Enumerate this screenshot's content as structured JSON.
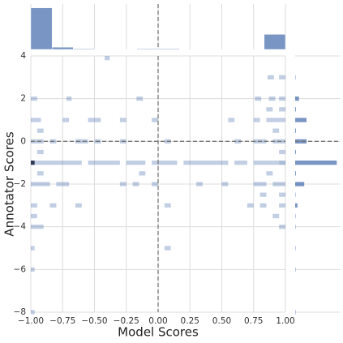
{
  "chart_data": {
    "type": "hist2d",
    "x_label": "Model Scores",
    "y_label": "Annotator Scores",
    "xlim": [
      -1,
      1
    ],
    "ylim": [
      -8,
      4
    ],
    "xticks": [
      {
        "value": -1,
        "label": "−1.00"
      },
      {
        "value": -0.75,
        "label": "−0.75"
      },
      {
        "value": -0.5,
        "label": "−0.50"
      },
      {
        "value": -0.25,
        "label": "−0.25"
      },
      {
        "value": 0,
        "label": "0.00"
      },
      {
        "value": 0.25,
        "label": "0.25"
      },
      {
        "value": 0.5,
        "label": "0.50"
      },
      {
        "value": 0.75,
        "label": "0.75"
      },
      {
        "value": 1,
        "label": "1.00"
      }
    ],
    "yticks": [
      {
        "value": -8,
        "label": "−8"
      },
      {
        "value": -6,
        "label": "−6"
      },
      {
        "value": -4,
        "label": "−4"
      },
      {
        "value": -2,
        "label": "−2"
      },
      0,
      2,
      4
    ],
    "grid": true,
    "color": "#4c72b0",
    "reference_x": 0,
    "reference_y": 0,
    "cell_height": 0.2,
    "cells": [
      [
        -0.42,
        -0.38,
        3.9,
        1
      ],
      [
        0.86,
        0.91,
        3,
        1
      ],
      [
        0.95,
        1,
        3,
        1
      ],
      [
        -1,
        -0.95,
        2,
        1
      ],
      [
        -0.72,
        -0.68,
        2,
        1
      ],
      [
        -0.17,
        -0.12,
        2,
        1
      ],
      [
        0.76,
        0.81,
        2,
        1
      ],
      [
        0.87,
        0.92,
        2,
        1
      ],
      [
        0.95,
        1,
        2,
        1
      ],
      [
        0.85,
        0.9,
        1.5,
        1
      ],
      [
        0.95,
        1,
        1.5,
        1
      ],
      [
        -1,
        -0.92,
        1,
        1
      ],
      [
        -0.75,
        -0.7,
        1,
        1
      ],
      [
        -0.55,
        -0.45,
        1,
        1
      ],
      [
        -0.3,
        -0.25,
        1,
        1
      ],
      [
        -0.05,
        0,
        1,
        1
      ],
      [
        0.55,
        0.6,
        1,
        1
      ],
      [
        0.75,
        0.8,
        1,
        1
      ],
      [
        0.85,
        1,
        1,
        1
      ],
      [
        -0.95,
        -0.9,
        0.5,
        1
      ],
      [
        0.9,
        0.95,
        0.5,
        1
      ],
      [
        -1,
        -0.9,
        0,
        1
      ],
      [
        -0.85,
        -0.8,
        0,
        1
      ],
      [
        -0.65,
        -0.55,
        0,
        1
      ],
      [
        -0.5,
        -0.45,
        0,
        1
      ],
      [
        -0.3,
        -0.25,
        0,
        1
      ],
      [
        0.05,
        0.1,
        0,
        1
      ],
      [
        0.6,
        0.65,
        0,
        1
      ],
      [
        0.75,
        0.85,
        0,
        1
      ],
      [
        0.9,
        1,
        0,
        1
      ],
      [
        -0.95,
        -0.9,
        -0.5,
        1
      ],
      [
        0.95,
        1,
        -0.5,
        1
      ],
      [
        -1,
        -0.97,
        -1,
        6
      ],
      [
        -0.97,
        -0.6,
        -1,
        1
      ],
      [
        -0.55,
        -0.3,
        -1,
        1
      ],
      [
        -0.25,
        -0.1,
        -1,
        1
      ],
      [
        -0.05,
        0.15,
        -1,
        1
      ],
      [
        0.2,
        0.55,
        -1,
        1
      ],
      [
        0.6,
        0.7,
        -1,
        1
      ],
      [
        0.75,
        0.95,
        -1,
        1
      ],
      [
        0.95,
        1,
        -1,
        2
      ],
      [
        -0.95,
        -0.9,
        -1.5,
        1
      ],
      [
        -0.15,
        -0.1,
        -1.5,
        1
      ],
      [
        0.85,
        0.9,
        -1.5,
        1
      ],
      [
        -1,
        -0.85,
        -2,
        1
      ],
      [
        -0.8,
        -0.7,
        -2,
        1
      ],
      [
        -0.3,
        -0.25,
        -2,
        1
      ],
      [
        -0.2,
        -0.15,
        -2,
        1
      ],
      [
        -0.05,
        0,
        -2,
        1
      ],
      [
        0.3,
        0.35,
        -2,
        1
      ],
      [
        0.5,
        0.55,
        -2,
        1
      ],
      [
        0.75,
        0.85,
        -2,
        1
      ],
      [
        0.9,
        1,
        -2,
        1
      ],
      [
        0.8,
        0.85,
        -2.5,
        1
      ],
      [
        0.95,
        1,
        -2.5,
        1
      ],
      [
        -1,
        -0.95,
        -3,
        1
      ],
      [
        -0.85,
        -0.8,
        -3,
        1
      ],
      [
        -0.65,
        -0.6,
        -3,
        1
      ],
      [
        0.05,
        0.1,
        -3,
        1
      ],
      [
        0.7,
        0.75,
        -3,
        1
      ],
      [
        0.8,
        0.85,
        -3,
        1
      ],
      [
        0.95,
        1,
        -3,
        1
      ],
      [
        -1,
        -0.95,
        -3.5,
        1
      ],
      [
        0.9,
        0.95,
        -3.5,
        1
      ],
      [
        -1,
        -0.9,
        -4,
        1
      ],
      [
        0.95,
        1,
        -4,
        1
      ],
      [
        -1,
        -0.97,
        -5,
        1
      ],
      [
        0.05,
        0.1,
        -5,
        1
      ],
      [
        -1,
        -0.97,
        -6,
        1
      ],
      [
        -1,
        -0.97,
        -8,
        1
      ]
    ],
    "marginal_x": {
      "bins": [
        -1,
        -0.833,
        -0.667,
        -0.5,
        -0.333,
        -0.167,
        0,
        0.167,
        0.333,
        0.5,
        0.667,
        0.833,
        1
      ],
      "counts": [
        55,
        3,
        1,
        0,
        0,
        1,
        1,
        0,
        0,
        0,
        0,
        20
      ],
      "ylim": [
        0,
        60
      ]
    },
    "marginal_y": {
      "y": [
        3,
        2,
        1.5,
        1,
        0.5,
        0,
        -0.5,
        -1,
        -1.5,
        -2,
        -2.5,
        -3,
        -3.5,
        -4,
        -5,
        -6,
        -8
      ],
      "counts": [
        0.5,
        5,
        1,
        15,
        1,
        15,
        1,
        55,
        1,
        12,
        0.5,
        3,
        0.5,
        0.5,
        0.5,
        0.5,
        0.5
      ],
      "xlim": [
        0,
        60
      ]
    }
  }
}
